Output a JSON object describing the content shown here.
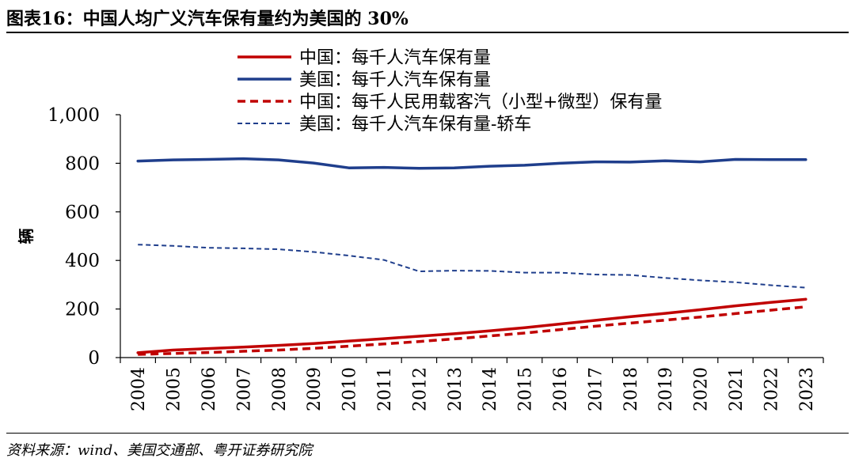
{
  "figure": {
    "title": "图表16：中国人均广义汽车保有量约为美国的 30%",
    "source": "资料来源：wind、美国交通部、粤开证券研究院"
  },
  "chart_data": {
    "type": "line",
    "ylabel": "辆",
    "ylim": [
      0,
      1000
    ],
    "yticks": [
      0,
      200,
      400,
      600,
      800,
      1000
    ],
    "ytick_labels": [
      "0",
      "200",
      "400",
      "600",
      "800",
      "1,000"
    ],
    "categories": [
      "2004",
      "2005",
      "2006",
      "2007",
      "2008",
      "2009",
      "2010",
      "2011",
      "2012",
      "2013",
      "2014",
      "2015",
      "2016",
      "2017",
      "2018",
      "2019",
      "2020",
      "2021",
      "2022",
      "2023"
    ],
    "legend_position": "top",
    "series": [
      {
        "name": "中国：每千人汽车保有量",
        "color": "#C00000",
        "dash": "solid",
        "values": [
          20,
          31,
          37,
          43,
          50,
          58,
          68,
          78,
          88,
          98,
          110,
          123,
          138,
          153,
          168,
          182,
          197,
          213,
          227,
          240
        ]
      },
      {
        "name": "美国：每千人汽车保有量",
        "color": "#1F3E8C",
        "dash": "solid",
        "values": [
          809,
          814,
          816,
          819,
          814,
          801,
          781,
          783,
          779,
          781,
          788,
          792,
          800,
          806,
          805,
          810,
          806,
          816,
          815,
          815
        ]
      },
      {
        "name": "中国：每千人民用载客汽（小型+微型）保有量",
        "color": "#C00000",
        "dash": "dashed",
        "values": [
          13,
          17,
          21,
          26,
          31,
          38,
          47,
          56,
          66,
          77,
          89,
          101,
          115,
          129,
          142,
          154,
          167,
          181,
          195,
          209
        ]
      },
      {
        "name": "美国：每千人汽车保有量-轿车",
        "color": "#1F3E8C",
        "dash": "dotted",
        "values": [
          465,
          460,
          452,
          450,
          446,
          435,
          420,
          402,
          355,
          358,
          357,
          350,
          350,
          342,
          340,
          328,
          318,
          310,
          298,
          288
        ]
      }
    ]
  }
}
